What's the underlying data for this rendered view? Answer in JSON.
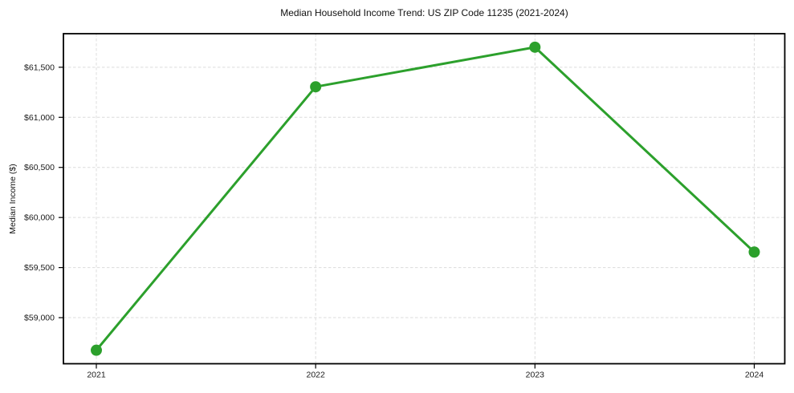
{
  "chart_data": {
    "type": "line",
    "title": "Median Household Income Trend: US ZIP Code 11235 (2021-2024)",
    "xlabel": "",
    "ylabel": "Median Income ($)",
    "categories": [
      "2021",
      "2022",
      "2023",
      "2024"
    ],
    "values": [
      58675,
      61305,
      61700,
      59655
    ],
    "y_ticks": {
      "values": [
        59000,
        59500,
        60000,
        60500,
        61000,
        61500
      ],
      "labels": [
        "$59,000",
        "$59,500",
        "$60,000",
        "$60,500",
        "$61,000",
        "$61,500"
      ]
    },
    "ylim": [
      58540,
      61835
    ],
    "grid": true,
    "legend": false,
    "style": {
      "line_color": "#2ca02c",
      "marker": "circle",
      "marker_radius": 7,
      "line_width": 3,
      "grid_color": "#dcdcdc",
      "axis_color": "#000000",
      "text_color": "#1a1a1a"
    }
  }
}
